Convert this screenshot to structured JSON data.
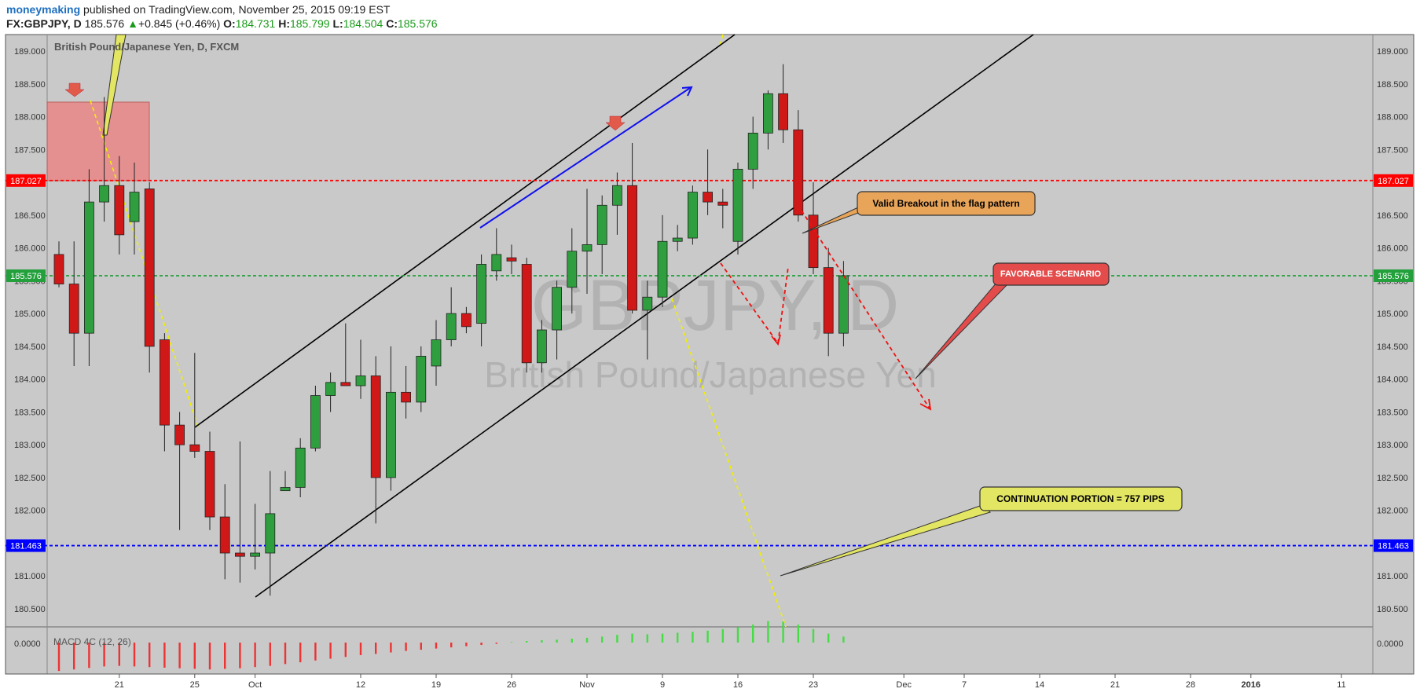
{
  "header": {
    "author": "moneymaking",
    "published": "published on TradingView.com, November 25, 2015 09:19 EST",
    "symbol": "FX:GBPJPY, D",
    "last": "185.576",
    "change_arrow": "▲",
    "change": "+0.845 (+0.46%)",
    "o_label": "O:",
    "o": "184.731",
    "h_label": "H:",
    "h": "185.799",
    "l_label": "L:",
    "l": "184.504",
    "c_label": "C:",
    "c": "185.576"
  },
  "chart_data": {
    "type": "candlestick",
    "title": "British Pound/Japanese Yen, D, FXCM",
    "watermark_symbol": "GBPJPY, D",
    "watermark_name": "British Pound/Japanese Yen",
    "ylim": [
      180.2,
      189.2
    ],
    "y_ticks": [
      "189.000",
      "188.500",
      "188.000",
      "187.500",
      "187.000",
      "186.500",
      "186.000",
      "185.500",
      "185.000",
      "184.500",
      "184.000",
      "183.500",
      "183.000",
      "182.500",
      "182.000",
      "181.500",
      "181.000",
      "180.500"
    ],
    "x_ticks": [
      {
        "i": 4,
        "label": "21"
      },
      {
        "i": 9,
        "label": "25"
      },
      {
        "i": 13,
        "label": "Oct"
      },
      {
        "i": 20,
        "label": "12"
      },
      {
        "i": 25,
        "label": "19"
      },
      {
        "i": 30,
        "label": "26"
      },
      {
        "i": 35,
        "label": "Nov"
      },
      {
        "i": 40,
        "label": "9"
      },
      {
        "i": 45,
        "label": "16"
      },
      {
        "i": 50,
        "label": "23"
      },
      {
        "i": 56,
        "label": "Dec"
      },
      {
        "i": 60,
        "label": "7"
      },
      {
        "i": 65,
        "label": "14"
      },
      {
        "i": 70,
        "label": "21"
      },
      {
        "i": 75,
        "label": "28"
      },
      {
        "i": 79,
        "label": "2016"
      },
      {
        "i": 85,
        "label": "11"
      }
    ],
    "candles": [
      {
        "i": 0,
        "o": 185.9,
        "h": 186.1,
        "l": 185.4,
        "c": 185.45
      },
      {
        "i": 1,
        "o": 185.45,
        "h": 186.1,
        "l": 184.2,
        "c": 184.7
      },
      {
        "i": 2,
        "o": 184.7,
        "h": 187.2,
        "l": 184.2,
        "c": 186.7
      },
      {
        "i": 3,
        "o": 186.7,
        "h": 188.3,
        "l": 186.4,
        "c": 186.95
      },
      {
        "i": 4,
        "o": 186.95,
        "h": 187.4,
        "l": 185.9,
        "c": 186.2
      },
      {
        "i": 5,
        "o": 186.4,
        "h": 187.3,
        "l": 185.9,
        "c": 186.85
      },
      {
        "i": 6,
        "o": 186.9,
        "h": 187.0,
        "l": 184.1,
        "c": 184.5
      },
      {
        "i": 7,
        "o": 184.6,
        "h": 184.7,
        "l": 182.9,
        "c": 183.3
      },
      {
        "i": 8,
        "o": 183.3,
        "h": 183.5,
        "l": 181.7,
        "c": 183.0
      },
      {
        "i": 9,
        "o": 183.0,
        "h": 184.4,
        "l": 182.8,
        "c": 182.9
      },
      {
        "i": 10,
        "o": 182.9,
        "h": 183.2,
        "l": 181.7,
        "c": 181.9
      },
      {
        "i": 11,
        "o": 181.9,
        "h": 182.4,
        "l": 180.95,
        "c": 181.35
      },
      {
        "i": 12,
        "o": 181.35,
        "h": 183.05,
        "l": 180.9,
        "c": 181.3
      },
      {
        "i": 13,
        "o": 181.3,
        "h": 182.1,
        "l": 181.1,
        "c": 181.35
      },
      {
        "i": 14,
        "o": 181.35,
        "h": 182.6,
        "l": 180.7,
        "c": 181.95
      },
      {
        "i": 15,
        "o": 182.3,
        "h": 182.6,
        "l": 182.3,
        "c": 182.35
      },
      {
        "i": 16,
        "o": 182.35,
        "h": 183.1,
        "l": 182.2,
        "c": 182.95
      },
      {
        "i": 17,
        "o": 182.95,
        "h": 183.9,
        "l": 182.9,
        "c": 183.75
      },
      {
        "i": 18,
        "o": 183.75,
        "h": 184.1,
        "l": 183.5,
        "c": 183.95
      },
      {
        "i": 19,
        "o": 183.95,
        "h": 184.85,
        "l": 183.9,
        "c": 183.9
      },
      {
        "i": 20,
        "o": 183.9,
        "h": 184.6,
        "l": 183.7,
        "c": 184.05
      },
      {
        "i": 21,
        "o": 184.05,
        "h": 184.35,
        "l": 181.8,
        "c": 182.5
      },
      {
        "i": 22,
        "o": 182.5,
        "h": 184.5,
        "l": 182.3,
        "c": 183.8
      },
      {
        "i": 23,
        "o": 183.8,
        "h": 184.2,
        "l": 183.4,
        "c": 183.65
      },
      {
        "i": 24,
        "o": 183.65,
        "h": 184.5,
        "l": 183.5,
        "c": 184.35
      },
      {
        "i": 25,
        "o": 184.2,
        "h": 184.9,
        "l": 183.9,
        "c": 184.6
      },
      {
        "i": 26,
        "o": 184.6,
        "h": 185.4,
        "l": 184.5,
        "c": 185.0
      },
      {
        "i": 27,
        "o": 185.0,
        "h": 185.1,
        "l": 184.7,
        "c": 184.8
      },
      {
        "i": 28,
        "o": 184.85,
        "h": 185.9,
        "l": 184.5,
        "c": 185.75
      },
      {
        "i": 29,
        "o": 185.65,
        "h": 186.3,
        "l": 185.5,
        "c": 185.9
      },
      {
        "i": 30,
        "o": 185.85,
        "h": 186.05,
        "l": 185.6,
        "c": 185.8
      },
      {
        "i": 31,
        "o": 185.75,
        "h": 185.85,
        "l": 184.1,
        "c": 184.25
      },
      {
        "i": 32,
        "o": 184.25,
        "h": 184.9,
        "l": 184.1,
        "c": 184.75
      },
      {
        "i": 33,
        "o": 184.75,
        "h": 185.5,
        "l": 184.3,
        "c": 185.4
      },
      {
        "i": 34,
        "o": 185.4,
        "h": 186.3,
        "l": 185.0,
        "c": 185.95
      },
      {
        "i": 35,
        "o": 185.95,
        "h": 186.9,
        "l": 185.3,
        "c": 186.05
      },
      {
        "i": 36,
        "o": 186.05,
        "h": 186.8,
        "l": 185.6,
        "c": 186.65
      },
      {
        "i": 37,
        "o": 186.65,
        "h": 187.15,
        "l": 186.2,
        "c": 186.95
      },
      {
        "i": 38,
        "o": 186.95,
        "h": 187.6,
        "l": 185.0,
        "c": 185.05
      },
      {
        "i": 39,
        "o": 185.05,
        "h": 185.5,
        "l": 184.3,
        "c": 185.25
      },
      {
        "i": 40,
        "o": 185.25,
        "h": 186.5,
        "l": 185.1,
        "c": 186.1
      },
      {
        "i": 41,
        "o": 186.1,
        "h": 186.35,
        "l": 185.95,
        "c": 186.15
      },
      {
        "i": 42,
        "o": 186.15,
        "h": 186.95,
        "l": 186.05,
        "c": 186.85
      },
      {
        "i": 43,
        "o": 186.85,
        "h": 187.5,
        "l": 186.5,
        "c": 186.7
      },
      {
        "i": 44,
        "o": 186.7,
        "h": 186.9,
        "l": 186.3,
        "c": 186.65
      },
      {
        "i": 45,
        "o": 186.1,
        "h": 187.3,
        "l": 185.9,
        "c": 187.2
      },
      {
        "i": 46,
        "o": 187.2,
        "h": 188.0,
        "l": 186.9,
        "c": 187.75
      },
      {
        "i": 47,
        "o": 187.75,
        "h": 188.4,
        "l": 187.5,
        "c": 188.35
      },
      {
        "i": 48,
        "o": 188.35,
        "h": 188.8,
        "l": 187.6,
        "c": 187.8
      },
      {
        "i": 49,
        "o": 187.8,
        "h": 188.1,
        "l": 186.4,
        "c": 186.5
      },
      {
        "i": 50,
        "o": 186.5,
        "h": 187.0,
        "l": 185.6,
        "c": 185.7
      },
      {
        "i": 51,
        "o": 185.7,
        "h": 186.0,
        "l": 184.35,
        "c": 184.7
      },
      {
        "i": 52,
        "o": 184.7,
        "h": 185.8,
        "l": 184.5,
        "c": 185.576
      }
    ],
    "levels": [
      {
        "value": 187.027,
        "label": "187.027",
        "color": "#ff0000"
      },
      {
        "value": 185.576,
        "label": "185.576",
        "color": "#23a03c"
      },
      {
        "value": 181.463,
        "label": "181.463",
        "color": "#0000ff"
      }
    ],
    "annotations": {
      "breakout": "Valid Breakout in the flag pattern",
      "scenario": "FAVORABLE SCENARIO",
      "continuation": "CONTINUATION PORTION = 757 PIPS"
    },
    "macd": {
      "label": "MACD 4C (12, 26)",
      "zero_label": "0.0000",
      "values": [
        -0.95,
        -0.9,
        -0.85,
        -0.8,
        -0.78,
        -0.8,
        -0.82,
        -0.84,
        -0.86,
        -0.88,
        -0.9,
        -0.88,
        -0.86,
        -0.82,
        -0.78,
        -0.72,
        -0.66,
        -0.6,
        -0.54,
        -0.48,
        -0.42,
        -0.38,
        -0.33,
        -0.28,
        -0.24,
        -0.2,
        -0.16,
        -0.12,
        -0.08,
        -0.04,
        0.02,
        0.05,
        0.08,
        0.1,
        0.13,
        0.16,
        0.2,
        0.26,
        0.3,
        0.28,
        0.3,
        0.33,
        0.36,
        0.4,
        0.45,
        0.52,
        0.6,
        0.72,
        0.7,
        0.6,
        0.45,
        0.3,
        0.2
      ]
    }
  },
  "colors": {
    "bg": "#c9c9c9",
    "up": "#2e9e3e",
    "down": "#d01818",
    "annotation_orange": "#e8a55a",
    "annotation_red": "#e44c4c",
    "annotation_yellow": "#e3e663"
  }
}
